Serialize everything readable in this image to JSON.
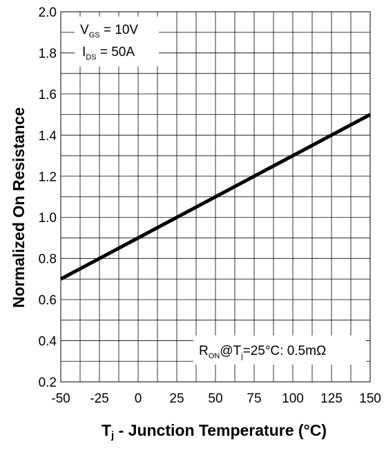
{
  "chart_data": {
    "type": "line",
    "title": "",
    "xlabel": "Tj - Junction Temperature (°C)",
    "xlabel_main": "T",
    "xlabel_sub": "j",
    "xlabel_rest": " - Junction Temperature (°C)",
    "ylabel": "Normalized On Resistance",
    "xlim": [
      -50,
      150
    ],
    "ylim": [
      0.2,
      2.0
    ],
    "x_ticks": [
      -50,
      -25,
      0,
      25,
      50,
      75,
      100,
      125,
      150
    ],
    "x_tick_labels": [
      "-50",
      "-25",
      "0",
      "25",
      "50",
      "75",
      "100",
      "125",
      "150"
    ],
    "y_ticks": [
      0.2,
      0.4,
      0.6,
      0.8,
      1.0,
      1.2,
      1.4,
      1.6,
      1.8,
      2.0
    ],
    "y_tick_labels": [
      "0.2",
      "0.4",
      "0.6",
      "0.8",
      "1.0",
      "1.2",
      "1.4",
      "1.6",
      "1.8",
      "2.0"
    ],
    "grid": true,
    "series": [
      {
        "x": [
          -50,
          150
        ],
        "y": [
          0.7,
          1.5
        ],
        "color": "#000000"
      }
    ],
    "annotations": {
      "vgs": {
        "main": "V",
        "sub": "GS",
        "rest": " = 10V"
      },
      "ids": {
        "main": "I",
        "sub": "DS",
        "rest": " = 50A"
      },
      "ron": {
        "main": "R",
        "sub": "ON",
        "mid": "@T",
        "sub2": "j",
        "rest": "=25°C: 0.5mΩ"
      }
    }
  }
}
